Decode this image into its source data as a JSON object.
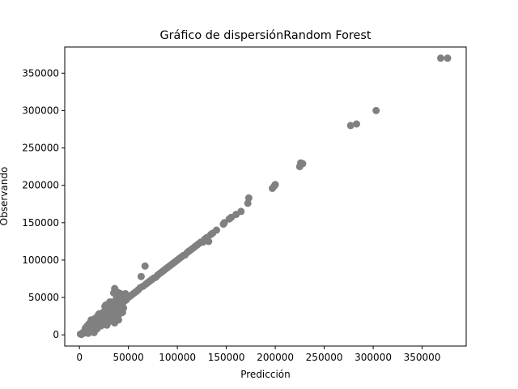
{
  "chart_data": {
    "type": "scatter",
    "title": "Gráfico de dispersiónRandom Forest",
    "xlabel": "Predicción",
    "ylabel": "Observando",
    "xlim": [
      -15000,
      395000
    ],
    "ylim": [
      -15000,
      385000
    ],
    "xticks": [
      0,
      50000,
      100000,
      150000,
      200000,
      250000,
      300000,
      350000
    ],
    "yticks": [
      0,
      50000,
      100000,
      150000,
      200000,
      250000,
      300000,
      350000
    ],
    "xtick_labels": [
      "0",
      "50000",
      "100000",
      "150000",
      "200000",
      "250000",
      "300000",
      "350000"
    ],
    "ytick_labels": [
      "0",
      "50000",
      "100000",
      "150000",
      "200000",
      "250000",
      "300000",
      "350000"
    ],
    "grid": false,
    "marker_color": "#808080",
    "series": [
      {
        "points": [
          [
            1000,
            1000
          ],
          [
            2000,
            500
          ],
          [
            3000,
            2000
          ],
          [
            4000,
            3500
          ],
          [
            5000,
            2500
          ],
          [
            6000,
            5000
          ],
          [
            7000,
            4000
          ],
          [
            8000,
            7000
          ],
          [
            9000,
            6000
          ],
          [
            10000,
            9000
          ],
          [
            11000,
            12000
          ],
          [
            12000,
            8000
          ],
          [
            13000,
            14000
          ],
          [
            14000,
            10000
          ],
          [
            15000,
            16000
          ],
          [
            16000,
            12000
          ],
          [
            17000,
            18000
          ],
          [
            18000,
            15000
          ],
          [
            19000,
            21000
          ],
          [
            20000,
            17000
          ],
          [
            21000,
            24000
          ],
          [
            22000,
            19000
          ],
          [
            23000,
            27000
          ],
          [
            24000,
            22000
          ],
          [
            25000,
            30000
          ],
          [
            26000,
            24000
          ],
          [
            27000,
            33000
          ],
          [
            28000,
            26000
          ],
          [
            29000,
            28000
          ],
          [
            30000,
            32000
          ],
          [
            31000,
            27000
          ],
          [
            32000,
            36000
          ],
          [
            33000,
            29000
          ],
          [
            34000,
            38000
          ],
          [
            35000,
            31000
          ],
          [
            36000,
            42000
          ],
          [
            37000,
            33000
          ],
          [
            38000,
            45000
          ],
          [
            39000,
            35000
          ],
          [
            40000,
            40000
          ],
          [
            41000,
            43000
          ],
          [
            42000,
            38000
          ],
          [
            43000,
            47000
          ],
          [
            44000,
            42000
          ],
          [
            45000,
            48000
          ],
          [
            46000,
            45000
          ],
          [
            47000,
            50000
          ],
          [
            48000,
            47000
          ],
          [
            49000,
            51000
          ],
          [
            50000,
            50000
          ],
          [
            6000,
            9000
          ],
          [
            9000,
            2000
          ],
          [
            10000,
            15000
          ],
          [
            12000,
            20000
          ],
          [
            14000,
            5000
          ],
          [
            16000,
            22000
          ],
          [
            18000,
            8000
          ],
          [
            20000,
            28000
          ],
          [
            22000,
            12000
          ],
          [
            24000,
            30000
          ],
          [
            25000,
            14000
          ],
          [
            27000,
            40000
          ],
          [
            28000,
            13000
          ],
          [
            30000,
            20000
          ],
          [
            32000,
            22000
          ],
          [
            33000,
            44000
          ],
          [
            34000,
            18000
          ],
          [
            35000,
            56000
          ],
          [
            36000,
            62000
          ],
          [
            36000,
            16000
          ],
          [
            38000,
            50000
          ],
          [
            40000,
            20000
          ],
          [
            42000,
            55000
          ],
          [
            44000,
            30000
          ],
          [
            8000,
            12000
          ],
          [
            15000,
            3000
          ],
          [
            19000,
            26000
          ],
          [
            26000,
            38000
          ],
          [
            29000,
            16000
          ],
          [
            31000,
            44000
          ],
          [
            37000,
            24000
          ],
          [
            39000,
            57000
          ],
          [
            41000,
            28000
          ],
          [
            43000,
            52000
          ],
          [
            45000,
            36000
          ],
          [
            47000,
            55000
          ],
          [
            52000,
            52000
          ],
          [
            54000,
            54000
          ],
          [
            56000,
            56000
          ],
          [
            58000,
            58000
          ],
          [
            60000,
            60000
          ],
          [
            62000,
            63000
          ],
          [
            63000,
            78000
          ],
          [
            65000,
            65000
          ],
          [
            67000,
            92000
          ],
          [
            68000,
            68000
          ],
          [
            70000,
            70000
          ],
          [
            72000,
            72000
          ],
          [
            74000,
            74000
          ],
          [
            76000,
            76000
          ],
          [
            78000,
            77000
          ],
          [
            80000,
            80000
          ],
          [
            82000,
            82000
          ],
          [
            84000,
            84000
          ],
          [
            86000,
            86000
          ],
          [
            88000,
            88000
          ],
          [
            90000,
            90000
          ],
          [
            92000,
            92000
          ],
          [
            94000,
            94000
          ],
          [
            96000,
            96000
          ],
          [
            98000,
            98000
          ],
          [
            100000,
            100000
          ],
          [
            102000,
            102000
          ],
          [
            104000,
            104000
          ],
          [
            106000,
            106000
          ],
          [
            108000,
            107000
          ],
          [
            110000,
            110000
          ],
          [
            112000,
            112000
          ],
          [
            114000,
            114000
          ],
          [
            116000,
            116000
          ],
          [
            118000,
            118000
          ],
          [
            120000,
            120000
          ],
          [
            122000,
            122000
          ],
          [
            124000,
            124000
          ],
          [
            126000,
            124000
          ],
          [
            128000,
            128000
          ],
          [
            130000,
            130000
          ],
          [
            132000,
            125000
          ],
          [
            134000,
            134000
          ],
          [
            136000,
            136000
          ],
          [
            140000,
            140000
          ],
          [
            147000,
            148000
          ],
          [
            148000,
            150000
          ],
          [
            153000,
            155000
          ],
          [
            155000,
            157000
          ],
          [
            160000,
            161000
          ],
          [
            165000,
            165000
          ],
          [
            172000,
            176000
          ],
          [
            173000,
            183000
          ],
          [
            197000,
            196000
          ],
          [
            199000,
            199000
          ],
          [
            200000,
            201000
          ],
          [
            225000,
            225000
          ],
          [
            226000,
            230000
          ],
          [
            228000,
            229000
          ],
          [
            277000,
            280000
          ],
          [
            283000,
            282000
          ],
          [
            303000,
            300000
          ],
          [
            369000,
            370000
          ],
          [
            376000,
            370000
          ]
        ]
      }
    ]
  }
}
